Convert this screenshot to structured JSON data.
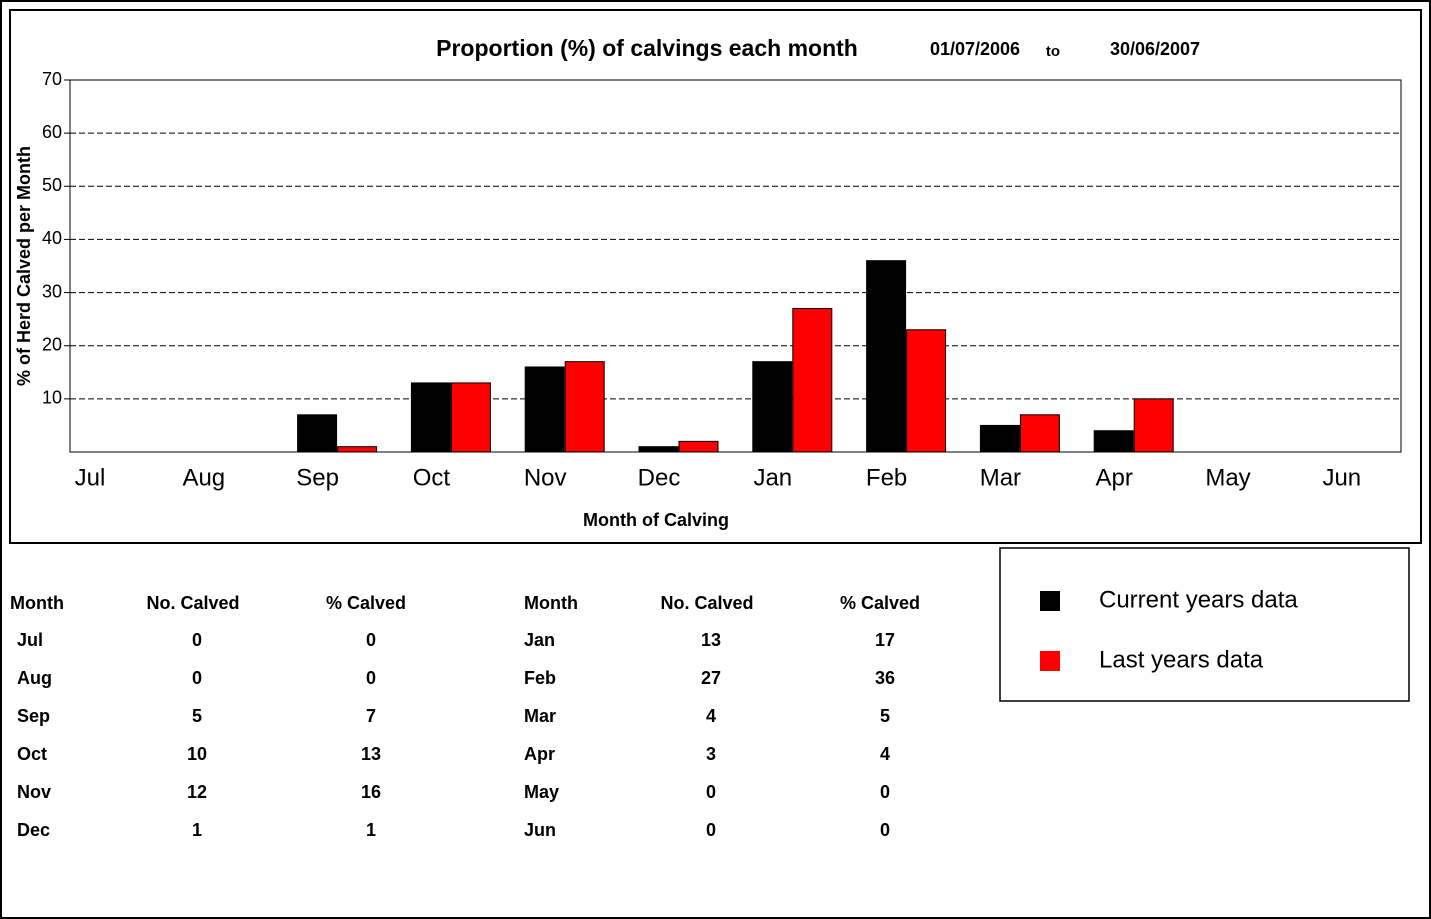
{
  "chart_data": {
    "type": "bar",
    "title": "Proportion (%) of calvings each month",
    "date_from": "01/07/2006",
    "date_sep": "to",
    "date_to": "30/06/2007",
    "y_label": "% of Herd Calved per Month",
    "x_label": "Month of Calving",
    "categories": [
      "Jul",
      "Aug",
      "Sep",
      "Oct",
      "Nov",
      "Dec",
      "Jan",
      "Feb",
      "Mar",
      "Apr",
      "May",
      "Jun"
    ],
    "series": [
      {
        "name": "Current years data",
        "color": "#000000",
        "values": [
          0,
          0,
          7,
          13,
          16,
          1,
          17,
          36,
          5,
          4,
          0,
          0
        ]
      },
      {
        "name": "Last years data",
        "color": "#ff0000",
        "values": [
          0,
          0,
          1,
          13,
          17,
          2,
          27,
          23,
          7,
          10,
          0,
          0
        ]
      }
    ],
    "ylim": [
      0,
      70
    ],
    "yticks": [
      10,
      20,
      30,
      40,
      50,
      60,
      70
    ],
    "grid": true
  },
  "tables": [
    {
      "columns": [
        "Month",
        "No. Calved",
        "% Calved"
      ],
      "rows": [
        [
          "Jul",
          0,
          0
        ],
        [
          "Aug",
          0,
          0
        ],
        [
          "Sep",
          5,
          7
        ],
        [
          "Oct",
          10,
          13
        ],
        [
          "Nov",
          12,
          16
        ],
        [
          "Dec",
          1,
          1
        ]
      ]
    },
    {
      "columns": [
        "Month",
        "No. Calved",
        "% Calved"
      ],
      "rows": [
        [
          "Jan",
          13,
          17
        ],
        [
          "Feb",
          27,
          36
        ],
        [
          "Mar",
          4,
          5
        ],
        [
          "Apr",
          3,
          4
        ],
        [
          "May",
          0,
          0
        ],
        [
          "Jun",
          0,
          0
        ]
      ]
    }
  ]
}
